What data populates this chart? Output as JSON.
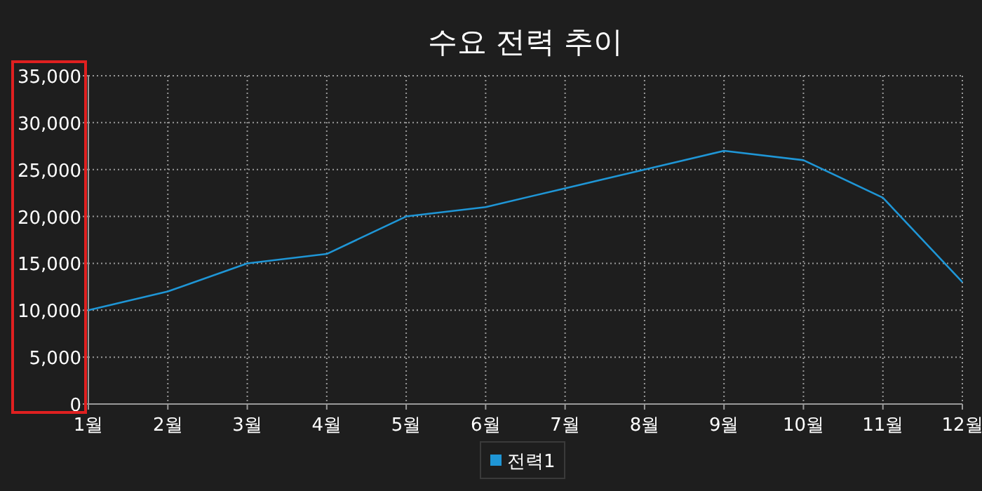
{
  "chart_data": {
    "type": "line",
    "title": "수요 전력 추이",
    "categories": [
      "1월",
      "2월",
      "3월",
      "4월",
      "5월",
      "6월",
      "7월",
      "8월",
      "9월",
      "10월",
      "11월",
      "12월"
    ],
    "series": [
      {
        "name": "전력1",
        "color": "#1f96d6",
        "values": [
          10000,
          12000,
          15000,
          16000,
          20000,
          21000,
          23000,
          25000,
          27000,
          26000,
          22000,
          13000
        ]
      }
    ],
    "ylim": [
      0,
      35000
    ],
    "yticks": [
      {
        "value": 0,
        "label": "0"
      },
      {
        "value": 5000,
        "label": "5,000"
      },
      {
        "value": 10000,
        "label": "10,000"
      },
      {
        "value": 15000,
        "label": "15,000"
      },
      {
        "value": 20000,
        "label": "20,000"
      },
      {
        "value": 25000,
        "label": "25,000"
      },
      {
        "value": 30000,
        "label": "30,000"
      },
      {
        "value": 35000,
        "label": "35,000"
      }
    ],
    "grid": true,
    "legend": "bottom",
    "marker": "none",
    "line_style": "solid"
  }
}
